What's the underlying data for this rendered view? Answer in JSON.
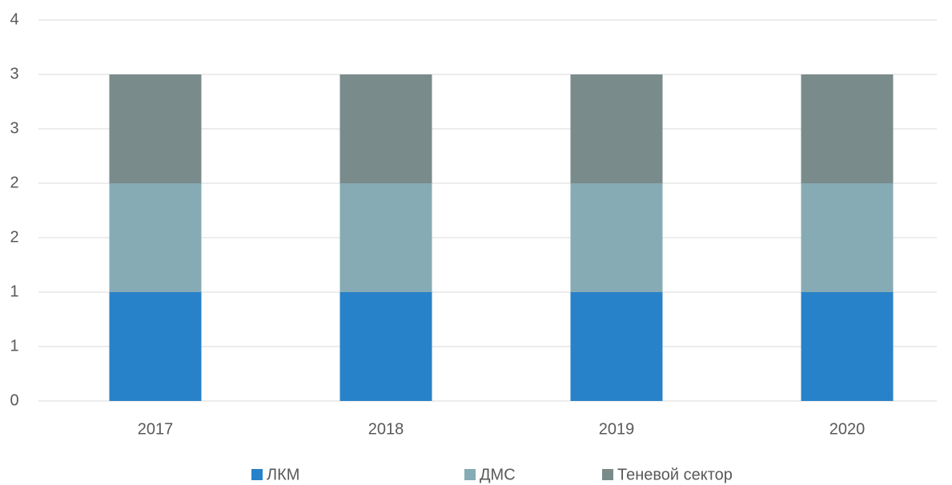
{
  "chart_data": {
    "type": "stacked_bar",
    "categories": [
      "2017",
      "2018",
      "2019",
      "2020"
    ],
    "series": [
      {
        "name": "ЛКМ",
        "color": "#2882c9",
        "values": [
          1,
          1,
          1,
          1
        ]
      },
      {
        "name": "ДМС",
        "color": "#86abb5",
        "values": [
          1,
          1,
          1,
          1
        ]
      },
      {
        "name": "Теневой сектор",
        "color": "#7a8b8b",
        "values": [
          1,
          1,
          1,
          1
        ]
      }
    ],
    "ylim": [
      0,
      3.5
    ],
    "yticks": [
      0,
      {
        "value": 0.5,
        "label": "1"
      },
      1,
      {
        "value": 1.5,
        "label": "2"
      },
      2,
      {
        "value": 2.5,
        "label": "3"
      },
      3,
      {
        "value": 3.5,
        "label": "4"
      }
    ],
    "grid": true,
    "legend": "bottom"
  }
}
